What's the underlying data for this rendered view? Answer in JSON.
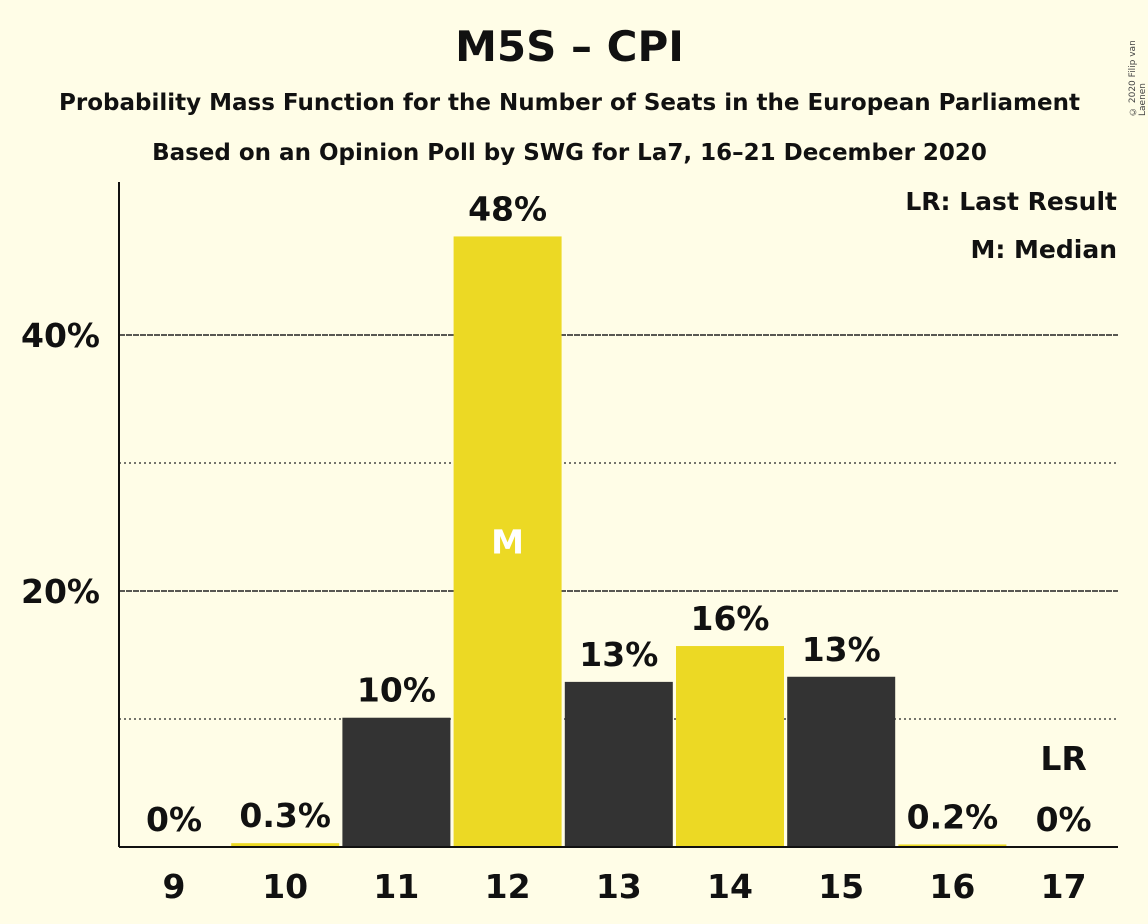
{
  "title": "M5S – CPI",
  "subtitle1": "Probability Mass Function for the Number of Seats in the European Parliament",
  "subtitle2": "Based on an Opinion Poll by SWG for La7, 16–21 December 2020",
  "copyright": "© 2020 Filip van Laenen",
  "legend": {
    "last_result": "LR: Last Result",
    "median": "M: Median"
  },
  "colors": {
    "background": "#fffde7",
    "dark_bar": "#333333",
    "yellow_bar": "#ecd924",
    "text": "#111111"
  },
  "chart_data": {
    "type": "bar",
    "title": "M5S – CPI",
    "xlabel": "",
    "ylabel": "",
    "ylim": [
      0,
      52
    ],
    "yticks": [
      {
        "value": 20,
        "label": "20%"
      },
      {
        "value": 40,
        "label": "40%"
      }
    ],
    "minor_gridlines": [
      10,
      30
    ],
    "categories": [
      "9",
      "10",
      "11",
      "12",
      "13",
      "14",
      "15",
      "16",
      "17"
    ],
    "values": [
      0,
      0.3,
      10,
      48,
      13,
      16,
      13,
      0.2,
      0
    ],
    "precise_values": [
      0,
      0.3,
      10.1,
      47.7,
      12.9,
      15.7,
      13.3,
      0.2,
      0
    ],
    "labels": [
      "0%",
      "0.3%",
      "10%",
      "48%",
      "13%",
      "16%",
      "13%",
      "0.2%",
      "0%"
    ],
    "bar_colors": [
      "dark",
      "yellow",
      "dark",
      "yellow",
      "dark",
      "yellow",
      "dark",
      "yellow",
      "dark"
    ],
    "median_index": 3,
    "median_marker": "M",
    "last_result_index": 8,
    "last_result_marker": "LR",
    "legend_placement": "top-right"
  }
}
